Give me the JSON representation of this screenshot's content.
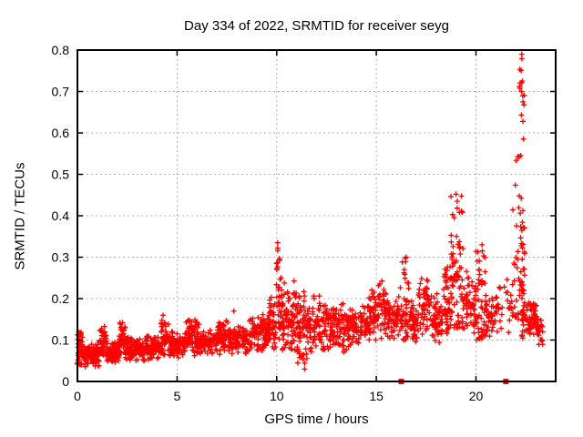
{
  "chart": {
    "title": "Day 334 of 2022, SRMTID for receiver seyg",
    "xlabel": "GPS time / hours",
    "ylabel": "SRMTID / TECUs"
  },
  "chart_data": {
    "type": "scatter",
    "title": "Day 334 of 2022, SRMTID for receiver seyg",
    "xlabel": "GPS time / hours",
    "ylabel": "SRMTID / TECUs",
    "xlim": [
      0,
      24
    ],
    "ylim": [
      0,
      0.8
    ],
    "xticks": [
      0,
      5,
      10,
      15,
      20
    ],
    "xtick_labels": [
      "0",
      "5",
      "10",
      "15",
      "20"
    ],
    "yticks": [
      0,
      0.1,
      0.2,
      0.3,
      0.4,
      0.5,
      0.6,
      0.7,
      0.8
    ],
    "ytick_labels": [
      "0",
      "0.1",
      "0.2",
      "0.3",
      "0.4",
      "0.5",
      "0.6",
      "0.7",
      "0.8"
    ],
    "grid": true,
    "grid_style": "dashed",
    "marker": "plus",
    "marker_color": "#ff0000",
    "grid_color": "#b3b3b3",
    "border_color": "#000000",
    "background_color": "#ffffff",
    "seed": 7,
    "scatter_envelope_comment": "Each segment: [hour_start, hour_end, y_min_TECU, y_max_TECU, point_count, distribution] distribution: c=center-weighted band, u=uniform streak, b=bottom-weighted streak",
    "scatter_envelope": [
      [
        0.0,
        0.25,
        0.04,
        0.12,
        50,
        "u"
      ],
      [
        0.25,
        1.1,
        0.03,
        0.095,
        110,
        "c"
      ],
      [
        1.1,
        1.45,
        0.05,
        0.135,
        50,
        "c"
      ],
      [
        1.45,
        2.1,
        0.04,
        0.1,
        80,
        "c"
      ],
      [
        2.1,
        2.4,
        0.06,
        0.15,
        40,
        "c"
      ],
      [
        2.4,
        3.4,
        0.045,
        0.11,
        110,
        "c"
      ],
      [
        3.4,
        4.2,
        0.05,
        0.115,
        90,
        "c"
      ],
      [
        4.2,
        4.6,
        0.06,
        0.16,
        45,
        "c"
      ],
      [
        4.6,
        5.4,
        0.055,
        0.125,
        90,
        "c"
      ],
      [
        5.4,
        6.1,
        0.06,
        0.155,
        80,
        "c"
      ],
      [
        6.1,
        7.0,
        0.06,
        0.13,
        90,
        "c"
      ],
      [
        7.0,
        7.6,
        0.065,
        0.155,
        70,
        "c"
      ],
      [
        7.6,
        8.6,
        0.06,
        0.14,
        100,
        "c"
      ],
      [
        8.6,
        9.6,
        0.07,
        0.17,
        100,
        "c"
      ],
      [
        9.6,
        9.95,
        0.06,
        0.21,
        45,
        "c"
      ],
      [
        9.95,
        10.25,
        0.1,
        0.335,
        40,
        "u"
      ],
      [
        10.25,
        11.0,
        0.05,
        0.25,
        90,
        "c"
      ],
      [
        11.0,
        11.6,
        0.03,
        0.23,
        70,
        "c"
      ],
      [
        11.6,
        12.6,
        0.06,
        0.22,
        90,
        "c"
      ],
      [
        12.6,
        13.6,
        0.06,
        0.2,
        90,
        "c"
      ],
      [
        13.6,
        14.6,
        0.08,
        0.19,
        90,
        "c"
      ],
      [
        14.6,
        15.1,
        0.09,
        0.23,
        50,
        "c"
      ],
      [
        15.1,
        15.5,
        0.1,
        0.26,
        40,
        "c"
      ],
      [
        15.5,
        16.2,
        0.09,
        0.21,
        60,
        "c"
      ],
      [
        16.2,
        16.65,
        0.1,
        0.3,
        45,
        "b"
      ],
      [
        16.65,
        17.1,
        0.08,
        0.2,
        45,
        "c"
      ],
      [
        17.1,
        17.8,
        0.09,
        0.26,
        60,
        "c"
      ],
      [
        17.8,
        18.35,
        0.09,
        0.22,
        55,
        "c"
      ],
      [
        18.35,
        18.7,
        0.1,
        0.3,
        40,
        "c"
      ],
      [
        18.7,
        19.35,
        0.13,
        0.455,
        75,
        "b"
      ],
      [
        19.35,
        20.0,
        0.1,
        0.28,
        55,
        "c"
      ],
      [
        20.0,
        20.5,
        0.1,
        0.335,
        50,
        "b"
      ],
      [
        20.5,
        21.1,
        0.1,
        0.22,
        45,
        "c"
      ],
      [
        21.1,
        21.8,
        0.1,
        0.26,
        25,
        "c"
      ],
      [
        21.8,
        22.15,
        0.15,
        0.55,
        25,
        "b"
      ],
      [
        22.15,
        22.45,
        0.2,
        0.79,
        50,
        "b"
      ],
      [
        22.3,
        23.05,
        0.1,
        0.2,
        80,
        "c"
      ],
      [
        23.05,
        23.35,
        0.08,
        0.17,
        25,
        "c"
      ]
    ],
    "notable_points": [
      [
        22.3,
        0.79
      ],
      [
        22.33,
        0.725
      ],
      [
        22.28,
        0.7
      ],
      [
        22.36,
        0.675
      ],
      [
        19.0,
        0.452
      ],
      [
        10.05,
        0.335
      ],
      [
        20.3,
        0.33
      ],
      [
        16.5,
        0.3
      ],
      [
        11.4,
        0.03
      ],
      [
        4.3,
        0.16
      ],
      [
        7.85,
        0.17
      ]
    ],
    "axis_square_markers": [
      [
        16.25,
        0
      ],
      [
        21.5,
        0
      ]
    ]
  }
}
